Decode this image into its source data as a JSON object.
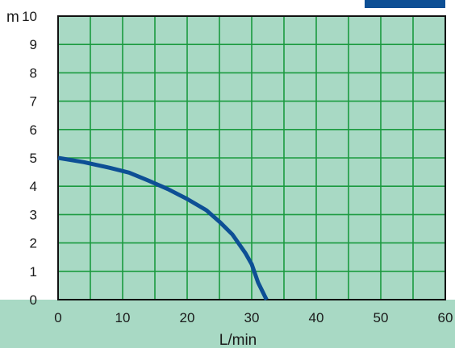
{
  "chart_data": {
    "type": "line",
    "ylabel": "m",
    "xlabel": "L/min",
    "xlim": [
      0,
      60
    ],
    "ylim": [
      0,
      10
    ],
    "x_ticks": [
      "0",
      "10",
      "20",
      "30",
      "40",
      "50",
      "60"
    ],
    "y_ticks": [
      "0",
      "1",
      "2",
      "3",
      "4",
      "5",
      "6",
      "7",
      "8",
      "9",
      "10"
    ],
    "grid": true,
    "series": [
      {
        "x": [
          0,
          4,
          8,
          11,
          14,
          17,
          20,
          23,
          25,
          27,
          29,
          30,
          31,
          32.3
        ],
        "y": [
          5.0,
          4.85,
          4.65,
          4.48,
          4.2,
          3.9,
          3.55,
          3.15,
          2.75,
          2.3,
          1.65,
          1.25,
          0.6,
          0.0
        ]
      }
    ]
  },
  "colors": {
    "plot_background": "#a8d9c4",
    "grid_lines": "#1a9a3f",
    "plot_border": "#111111",
    "curve": "#0d4f95",
    "corner_tab": "#0d4f95"
  }
}
